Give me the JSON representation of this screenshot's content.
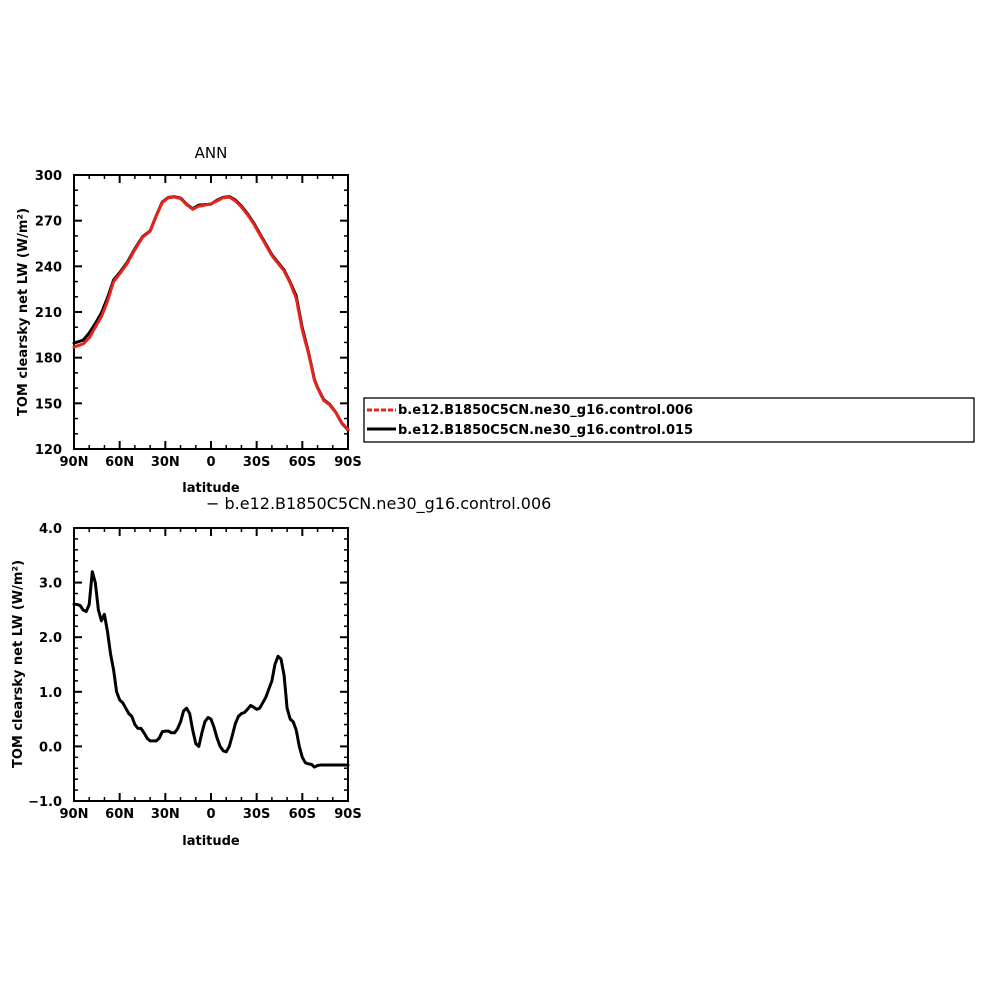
{
  "chart_data": [
    {
      "type": "line",
      "title": "ANN",
      "xlabel": "latitude",
      "ylabel": "TOM clearsky net LW (W/m²)",
      "xlim": [
        90,
        -90
      ],
      "ylim": [
        120,
        300
      ],
      "x_ticks": [
        90,
        60,
        30,
        0,
        -30,
        -60,
        -90
      ],
      "x_tick_labels": [
        "90N",
        "60N",
        "30N",
        "0",
        "30S",
        "60S",
        "90S"
      ],
      "y_ticks": [
        120,
        150,
        180,
        210,
        240,
        270,
        300
      ],
      "y_tick_labels": [
        "120",
        "150",
        "180",
        "210",
        "240",
        "270",
        "300"
      ],
      "legend_position": "right",
      "series": [
        {
          "name": "b.e12.B1850C5CN.ne30_g16.control.006",
          "color": "#e8231c",
          "style": "dashed",
          "x": [
            90,
            84,
            80,
            76,
            72,
            68,
            64,
            60,
            55,
            50,
            45,
            40,
            36,
            32,
            28,
            24,
            20,
            16,
            12,
            8,
            5,
            0,
            -4,
            -8,
            -12,
            -16,
            -20,
            -24,
            -28,
            -32,
            -36,
            -40,
            -44,
            -48,
            -52,
            -56,
            -60,
            -64,
            -68,
            -70,
            -74,
            -78,
            -82,
            -86,
            -90
          ],
          "y": [
            187,
            189,
            193,
            200,
            207,
            217,
            230,
            235,
            242,
            251,
            259,
            263,
            273,
            282,
            285,
            285.5,
            284.5,
            280.5,
            277.5,
            279.5,
            280,
            281,
            283,
            285,
            285.5,
            283,
            279,
            274,
            268,
            261,
            254,
            247,
            242,
            237,
            229,
            219,
            198,
            183,
            165,
            160,
            152,
            149,
            144,
            137,
            133
          ]
        },
        {
          "name": "b.e12.B1850C5CN.ne30_g16.control.015",
          "color": "#000000",
          "style": "solid",
          "x": [
            90,
            84,
            80,
            76,
            72,
            68,
            64,
            60,
            55,
            50,
            45,
            40,
            36,
            32,
            28,
            24,
            20,
            16,
            12,
            8,
            5,
            0,
            -4,
            -8,
            -12,
            -16,
            -20,
            -24,
            -28,
            -32,
            -36,
            -40,
            -44,
            -48,
            -52,
            -56,
            -60,
            -64,
            -68,
            -70,
            -74,
            -78,
            -82,
            -86,
            -90
          ],
          "y": [
            189.6,
            191.5,
            196.2,
            202.4,
            209.4,
            219.3,
            231.1,
            235.9,
            242.7,
            251.6,
            259.4,
            263.3,
            273.2,
            282.3,
            285.3,
            285.7,
            284.8,
            280.8,
            277.8,
            280.2,
            280.4,
            280.9,
            283.5,
            285.3,
            285.8,
            283.6,
            279.6,
            274.6,
            268.6,
            261.6,
            254.6,
            247.6,
            242.6,
            237.6,
            229.6,
            220.6,
            199.5,
            183.7,
            165.5,
            160.4,
            152.5,
            149.3,
            144.1,
            136.8,
            132.6
          ]
        }
      ]
    },
    {
      "type": "line",
      "title": "− b.e12.B1850C5CN.ne30_g16.control.006",
      "xlabel": "latitude",
      "ylabel": "TOM clearsky net LW (W/m²)",
      "xlim": [
        90,
        -90
      ],
      "ylim": [
        -1.0,
        4.0
      ],
      "x_ticks": [
        90,
        60,
        30,
        0,
        -30,
        -60,
        -90
      ],
      "x_tick_labels": [
        "90N",
        "60N",
        "30N",
        "0",
        "30S",
        "60S",
        "90S"
      ],
      "y_ticks": [
        -1.0,
        0.0,
        1.0,
        2.0,
        3.0,
        4.0
      ],
      "y_tick_labels": [
        "−1.0",
        "0.0",
        "1.0",
        "2.0",
        "3.0",
        "4.0"
      ],
      "series": [
        {
          "color": "#000000",
          "style": "solid",
          "x": [
            90,
            88,
            86,
            84,
            82,
            80,
            78,
            76,
            74,
            72,
            70,
            68,
            66,
            64,
            62,
            60,
            58,
            56,
            54,
            52,
            50,
            48,
            46,
            44,
            42,
            40,
            38,
            36,
            34,
            32,
            30,
            28,
            26,
            24,
            22,
            20,
            18,
            16,
            14,
            12,
            10,
            8,
            6,
            4,
            2,
            0,
            -2,
            -4,
            -6,
            -8,
            -10,
            -12,
            -14,
            -16,
            -18,
            -20,
            -22,
            -24,
            -26,
            -28,
            -30,
            -32,
            -34,
            -36,
            -38,
            -40,
            -42,
            -44,
            -46,
            -48,
            -50,
            -52,
            -54,
            -56,
            -58,
            -60,
            -62,
            -64,
            -66,
            -68,
            -70,
            -72,
            -74,
            -76,
            -78,
            -80,
            -82,
            -84,
            -86,
            -88,
            -90
          ],
          "y": [
            2.6,
            2.6,
            2.58,
            2.5,
            2.47,
            2.6,
            3.2,
            3.0,
            2.5,
            2.3,
            2.42,
            2.1,
            1.7,
            1.4,
            1.0,
            0.85,
            0.8,
            0.7,
            0.6,
            0.55,
            0.4,
            0.33,
            0.33,
            0.25,
            0.15,
            0.1,
            0.1,
            0.1,
            0.15,
            0.27,
            0.28,
            0.28,
            0.25,
            0.25,
            0.32,
            0.45,
            0.65,
            0.7,
            0.6,
            0.3,
            0.05,
            0.0,
            0.25,
            0.45,
            0.53,
            0.5,
            0.35,
            0.15,
            0.0,
            -0.08,
            -0.1,
            0.0,
            0.2,
            0.42,
            0.55,
            0.6,
            0.62,
            0.68,
            0.75,
            0.72,
            0.68,
            0.7,
            0.8,
            0.9,
            1.05,
            1.2,
            1.5,
            1.65,
            1.6,
            1.3,
            0.7,
            0.5,
            0.45,
            0.3,
            0.0,
            -0.2,
            -0.3,
            -0.32,
            -0.33,
            -0.38,
            -0.35,
            -0.34,
            -0.34,
            -0.34,
            -0.34,
            -0.34,
            -0.34,
            -0.34,
            -0.34,
            -0.34,
            -0.34
          ]
        }
      ]
    }
  ],
  "legend": {
    "entries": [
      {
        "label": "b.e12.B1850C5CN.ne30_g16.control.006",
        "color": "#e8231c",
        "style": "dashed"
      },
      {
        "label": "b.e12.B1850C5CN.ne30_g16.control.015",
        "color": "#000000",
        "style": "solid"
      }
    ]
  },
  "subtitle": "− b.e12.B1850C5CN.ne30_g16.control.006"
}
